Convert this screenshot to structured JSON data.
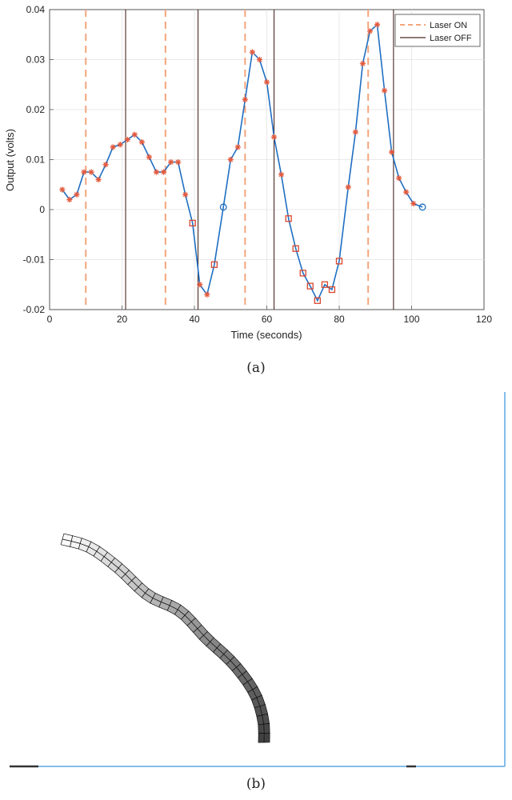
{
  "chart_data": {
    "type": "line",
    "xlabel": "Time (seconds)",
    "ylabel": "Output (volts)",
    "xlim": [
      0,
      120
    ],
    "ylim": [
      -0.02,
      0.04
    ],
    "xticks": [
      "0",
      "20",
      "40",
      "60",
      "80",
      "100",
      "120"
    ],
    "yticks": [
      "-0.02",
      "-0.01",
      "0",
      "0.01",
      "0.02",
      "0.03",
      "0.04"
    ],
    "grid": true,
    "legend_position": "top-right",
    "legend": [
      "Laser ON",
      "Laser OFF"
    ],
    "laser_on_times": [
      10,
      32,
      54,
      88
    ],
    "laser_off_times": [
      21,
      41,
      62,
      95
    ],
    "series": [
      {
        "x": [
          3.5,
          5.5,
          7.5,
          9.5,
          11.5,
          13.5,
          15.5,
          17.5,
          19.5,
          21.5,
          23.5,
          25.5,
          27.5,
          29.5,
          31.5,
          33.5,
          35.5,
          37.5,
          39.5,
          41.5,
          43.5,
          45.5,
          48,
          50,
          52,
          54,
          56,
          58,
          60,
          62,
          64,
          66,
          68,
          70,
          72,
          74,
          76,
          78,
          80,
          82.5,
          84.5,
          86.5,
          88.5,
          90.5,
          92.5,
          94.5,
          96.5,
          98.5,
          100.5,
          103
        ],
        "y": [
          0.004,
          0.002,
          0.003,
          0.0075,
          0.0075,
          0.006,
          0.009,
          0.0125,
          0.013,
          0.014,
          0.015,
          0.0135,
          0.0105,
          0.0075,
          0.0075,
          0.0095,
          0.0095,
          0.003,
          -0.0027,
          -0.015,
          -0.017,
          -0.011,
          0.0005,
          0.01,
          0.0125,
          0.022,
          0.0315,
          0.03,
          0.0255,
          0.0145,
          0.007,
          -0.0018,
          -0.0078,
          -0.0127,
          -0.0153,
          -0.0182,
          -0.015,
          -0.016,
          -0.0103,
          0.0045,
          0.0155,
          0.0292,
          0.0357,
          0.037,
          0.0238,
          0.0115,
          0.0063,
          0.0035,
          0.0012,
          0.0005
        ],
        "markers": [
          "star",
          "star",
          "star",
          "star",
          "star",
          "star",
          "star",
          "star",
          "star",
          "star",
          "star",
          "star",
          "star",
          "star",
          "star",
          "star",
          "star",
          "star",
          "square",
          "star",
          "star",
          "square",
          "circle",
          "star",
          "star",
          "star",
          "star",
          "star",
          "star",
          "star",
          "star",
          "square",
          "square",
          "square",
          "square",
          "square",
          "square",
          "square",
          "square",
          "star",
          "star",
          "star",
          "star",
          "star",
          "star",
          "star",
          "star",
          "star",
          "star",
          "circle"
        ]
      }
    ]
  },
  "colors": {
    "line": "#1f6fc2",
    "star": "#e35a3e",
    "square": "#d9472f",
    "circle": "#1f6fc2",
    "laser_on": "#f4a57c",
    "laser_off": "#4a2a22",
    "border_b": "#5aa9e6"
  },
  "captions": {
    "a": "(a)",
    "b": "(b)"
  }
}
